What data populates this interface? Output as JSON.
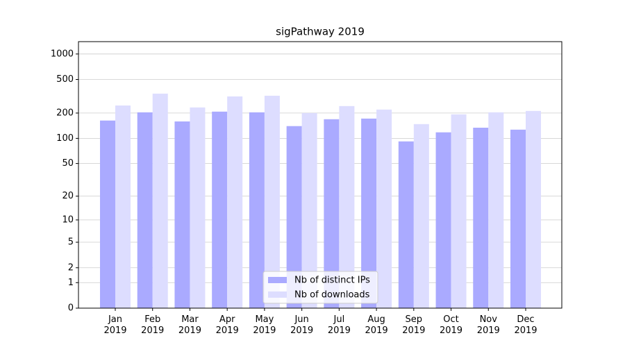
{
  "chart_data": {
    "type": "bar",
    "title": "sigPathway 2019",
    "categories": [
      "Jan\n2019",
      "Feb\n2019",
      "Mar\n2019",
      "Apr\n2019",
      "May\n2019",
      "Jun\n2019",
      "Jul\n2019",
      "Aug\n2019",
      "Sep\n2019",
      "Oct\n2019",
      "Nov\n2019",
      "Dec\n2019"
    ],
    "series": [
      {
        "name": "Nb of distinct IPs",
        "color": "#aaaaff",
        "values": [
          163,
          204,
          159,
          208,
          204,
          140,
          169,
          172,
          92,
          118,
          134,
          127
        ]
      },
      {
        "name": "Nb of downloads",
        "color": "#ddddff",
        "values": [
          246,
          340,
          233,
          315,
          321,
          200,
          242,
          220,
          148,
          193,
          204,
          212
        ]
      }
    ],
    "yscale": "log1p",
    "ylim": [
      0,
      1400
    ],
    "yticks": [
      0,
      1,
      2,
      5,
      10,
      20,
      50,
      100,
      200,
      500,
      1000
    ],
    "grid": true,
    "legend": "lower center"
  }
}
